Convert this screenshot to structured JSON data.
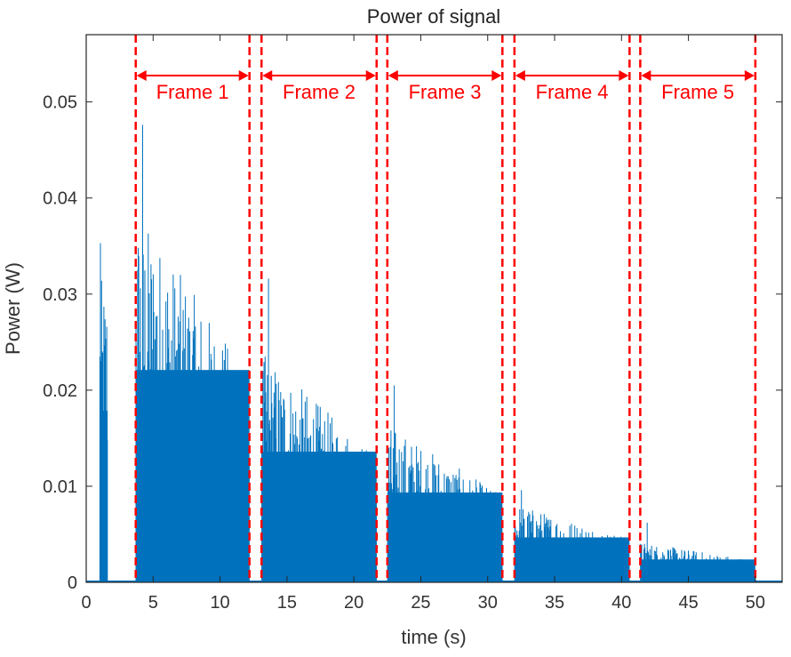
{
  "chart_data": {
    "type": "area",
    "title": "Power of signal",
    "xlabel": "time (s)",
    "ylabel": "Power (W)",
    "xlim": [
      0,
      52
    ],
    "ylim": [
      0,
      0.057
    ],
    "xticks": [
      0,
      5,
      10,
      15,
      20,
      25,
      30,
      35,
      40,
      45,
      50
    ],
    "yticks": [
      0,
      0.01,
      0.02,
      0.03,
      0.04,
      0.05
    ],
    "ytick_labels": [
      "0",
      "0.01",
      "0.02",
      "0.03",
      "0.04",
      "0.05"
    ],
    "grid": false,
    "series_color": "#0072BD",
    "annotation_color": "#FF0000",
    "series": [
      {
        "bursts": [
          {
            "start": 1.0,
            "end": 1.6,
            "base": 0.021,
            "peak": 0.0353
          },
          {
            "start": 3.7,
            "end": 12.2,
            "base": 0.026,
            "peak": 0.0476
          },
          {
            "start": 13.1,
            "end": 21.7,
            "base": 0.016,
            "peak": 0.0316
          },
          {
            "start": 22.5,
            "end": 31.1,
            "base": 0.011,
            "peak": 0.0205
          },
          {
            "start": 32.0,
            "end": 40.6,
            "base": 0.0055,
            "peak": 0.0096
          },
          {
            "start": 41.4,
            "end": 50.0,
            "base": 0.0028,
            "peak": 0.0062
          }
        ]
      }
    ],
    "frames": [
      {
        "label": "Frame 1",
        "start": 3.7,
        "end": 12.2
      },
      {
        "label": "Frame 2",
        "start": 13.1,
        "end": 21.7
      },
      {
        "label": "Frame 3",
        "start": 22.5,
        "end": 31.1
      },
      {
        "label": "Frame 4",
        "start": 32.0,
        "end": 40.6
      },
      {
        "label": "Frame 5",
        "start": 41.4,
        "end": 50.0
      }
    ]
  }
}
